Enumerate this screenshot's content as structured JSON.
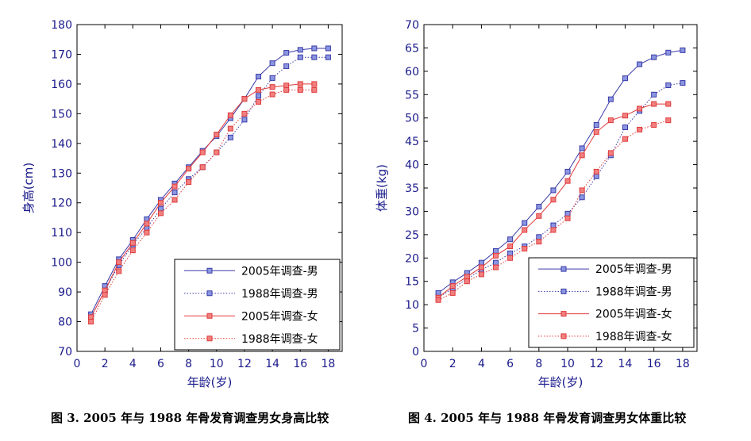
{
  "chart_data": [
    {
      "type": "line",
      "title": "",
      "xlabel": "年龄(岁)",
      "ylabel": "身高(cm)",
      "xlim": [
        0,
        19
      ],
      "ylim": [
        70,
        180
      ],
      "xticks": [
        0,
        2,
        4,
        6,
        8,
        10,
        12,
        14,
        16,
        18
      ],
      "yticks": [
        70,
        80,
        90,
        100,
        110,
        120,
        130,
        140,
        150,
        160,
        170,
        180
      ],
      "grid": false,
      "legend_position": "bottom-right",
      "series": [
        {
          "name": "2005年调查-男",
          "color": "#3a3aa8",
          "marker_fill": "#8a96e0",
          "line_style": "solid",
          "x": [
            1,
            2,
            3,
            4,
            5,
            6,
            7,
            8,
            9,
            10,
            11,
            12,
            13,
            14,
            15,
            16,
            17,
            18
          ],
          "y": [
            82.5,
            92,
            101,
            107.5,
            114.5,
            121,
            126.5,
            132,
            137.5,
            142.5,
            148.5,
            155,
            162.5,
            167,
            170.5,
            171.5,
            172,
            172
          ]
        },
        {
          "name": "1988年调查-男",
          "color": "#3a3aa8",
          "marker_fill": "#8a96e0",
          "line_style": "dotted",
          "x": [
            1,
            2,
            3,
            4,
            5,
            6,
            7,
            8,
            9,
            10,
            11,
            12,
            13,
            14,
            15,
            16,
            17,
            18
          ],
          "y": [
            81.5,
            90.5,
            99,
            106,
            111.5,
            118,
            123.5,
            128,
            132,
            137,
            142,
            148,
            156,
            162,
            166,
            169,
            169,
            169
          ]
        },
        {
          "name": "2005年调查-女",
          "color": "#e03a3a",
          "marker_fill": "#f08080",
          "line_style": "solid",
          "x": [
            1,
            2,
            3,
            4,
            5,
            6,
            7,
            8,
            9,
            10,
            11,
            12,
            13,
            14,
            15,
            16,
            17
          ],
          "y": [
            81.5,
            90.5,
            100,
            106.5,
            113,
            120,
            125.5,
            131.5,
            137,
            143,
            149.5,
            155,
            158,
            159,
            159.5,
            160,
            160
          ]
        },
        {
          "name": "1988年调查-女",
          "color": "#e03a3a",
          "marker_fill": "#f08080",
          "line_style": "dotted",
          "x": [
            1,
            2,
            3,
            4,
            5,
            6,
            7,
            8,
            9,
            10,
            11,
            12,
            13,
            14,
            15,
            16,
            17
          ],
          "y": [
            80,
            89,
            97,
            104,
            110,
            116.5,
            121,
            127,
            132,
            137,
            145,
            150,
            154,
            156.5,
            158,
            158,
            158
          ]
        }
      ]
    },
    {
      "type": "line",
      "title": "",
      "xlabel": "年龄(岁)",
      "ylabel": "体重(kg)",
      "xlim": [
        0,
        19
      ],
      "ylim": [
        0,
        70
      ],
      "xticks": [
        0,
        2,
        4,
        6,
        8,
        10,
        12,
        14,
        16,
        18
      ],
      "yticks": [
        0,
        5,
        10,
        15,
        20,
        25,
        30,
        35,
        40,
        45,
        50,
        55,
        60,
        65,
        70
      ],
      "grid": false,
      "legend_position": "bottom-right",
      "series": [
        {
          "name": "2005年调查-男",
          "color": "#3a3aa8",
          "marker_fill": "#8a96e0",
          "line_style": "solid",
          "x": [
            1,
            2,
            3,
            4,
            5,
            6,
            7,
            8,
            9,
            10,
            11,
            12,
            13,
            14,
            15,
            16,
            17,
            18
          ],
          "y": [
            12.5,
            14.8,
            16.8,
            19,
            21.5,
            24,
            27.5,
            31,
            34.5,
            38.5,
            43.5,
            48.5,
            54,
            58.5,
            61.5,
            63,
            64,
            64.5
          ]
        },
        {
          "name": "1988年调查-男",
          "color": "#3a3aa8",
          "marker_fill": "#8a96e0",
          "line_style": "dotted",
          "x": [
            1,
            2,
            3,
            4,
            5,
            6,
            7,
            8,
            9,
            10,
            11,
            12,
            13,
            14,
            15,
            16,
            17,
            18
          ],
          "y": [
            11.5,
            13.5,
            15.5,
            17.5,
            19,
            21,
            22.5,
            24.5,
            27,
            29.5,
            33,
            37.5,
            42,
            48,
            51.5,
            55,
            57,
            57.5
          ]
        },
        {
          "name": "2005年调查-女",
          "color": "#e03a3a",
          "marker_fill": "#f08080",
          "line_style": "solid",
          "x": [
            1,
            2,
            3,
            4,
            5,
            6,
            7,
            8,
            9,
            10,
            11,
            12,
            13,
            14,
            15,
            16,
            17
          ],
          "y": [
            11.5,
            14,
            16,
            18,
            20.5,
            22.5,
            26,
            29,
            32.5,
            36.5,
            42,
            47,
            49.5,
            50.5,
            52,
            53,
            53
          ]
        },
        {
          "name": "1988年调查-女",
          "color": "#e03a3a",
          "marker_fill": "#f08080",
          "line_style": "dotted",
          "x": [
            1,
            2,
            3,
            4,
            5,
            6,
            7,
            8,
            9,
            10,
            11,
            12,
            13,
            14,
            15,
            16,
            17
          ],
          "y": [
            11,
            12.5,
            15,
            16.5,
            18,
            20,
            22,
            23.5,
            26,
            28.5,
            34.5,
            38.5,
            42.5,
            45.5,
            47.5,
            48.5,
            49.5
          ]
        }
      ]
    }
  ],
  "captions": [
    "图 3. 2005 年与 1988 年骨发育调查男女身高比较",
    "图 4. 2005 年与 1988 年骨发育调查男女体重比较"
  ]
}
